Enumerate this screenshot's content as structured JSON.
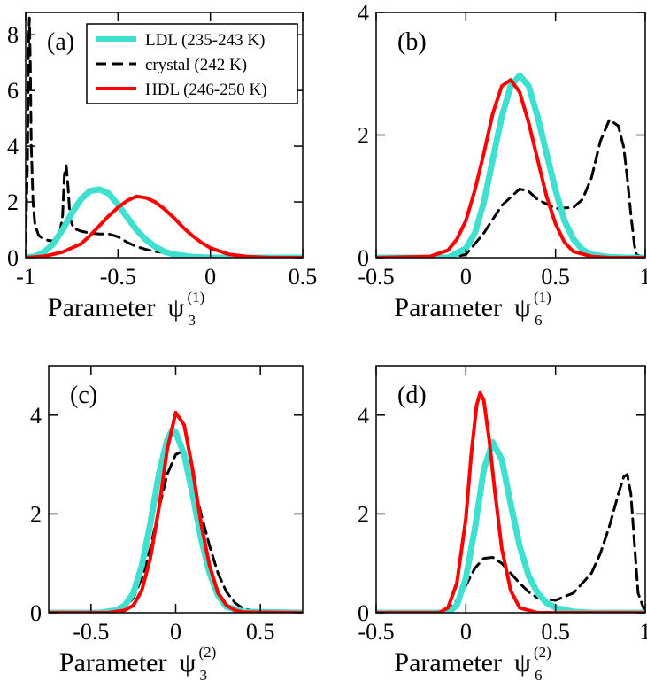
{
  "legend": {
    "items": [
      {
        "label": "LDL (235-243 K)",
        "color": "#40e0d0",
        "style": "solid-thick"
      },
      {
        "label": "crystal (242 K)",
        "color": "#000000",
        "style": "dashed"
      },
      {
        "label": "HDL (246-250 K)",
        "color": "#ff0000",
        "style": "solid"
      }
    ]
  },
  "chart_data": [
    {
      "type": "line",
      "panel_label": "(a)",
      "xlabel": "Parameter",
      "xlabel_symbol": "ψ",
      "xlabel_sub": "3",
      "xlabel_sup": "(1)",
      "xlim": [
        -1,
        0.5
      ],
      "ylim": [
        0,
        8.8
      ],
      "xticks": [
        "-1",
        "-0.5",
        "0",
        "0.5"
      ],
      "xtick_values": [
        -1,
        -0.5,
        0,
        0.5
      ],
      "yticks": [
        "0",
        "2",
        "4",
        "6",
        "8"
      ],
      "ytick_values": [
        0,
        2,
        4,
        6,
        8
      ],
      "series": [
        {
          "name": "crystal (242 K)",
          "x": [
            -1.0,
            -0.99,
            -0.985,
            -0.98,
            -0.975,
            -0.97,
            -0.96,
            -0.95,
            -0.93,
            -0.9,
            -0.86,
            -0.82,
            -0.8,
            -0.79,
            -0.78,
            -0.77,
            -0.76,
            -0.74,
            -0.7,
            -0.65,
            -0.6,
            -0.55,
            -0.5,
            -0.45,
            -0.4,
            -0.35,
            -0.3,
            -0.2,
            -0.1,
            0.0,
            0.1,
            0.3,
            0.5
          ],
          "y": [
            0.5,
            3.5,
            7.5,
            8.6,
            7.0,
            4.0,
            2.0,
            1.2,
            0.8,
            0.65,
            0.6,
            0.7,
            1.5,
            3.0,
            3.3,
            2.5,
            1.4,
            1.05,
            0.95,
            0.88,
            0.85,
            0.85,
            0.75,
            0.55,
            0.4,
            0.3,
            0.22,
            0.15,
            0.08,
            0.04,
            0.02,
            0.0,
            0.0
          ]
        },
        {
          "name": "LDL (235-243 K)",
          "x": [
            -1.0,
            -0.95,
            -0.9,
            -0.85,
            -0.8,
            -0.75,
            -0.7,
            -0.65,
            -0.6,
            -0.55,
            -0.5,
            -0.45,
            -0.4,
            -0.35,
            -0.3,
            -0.25,
            -0.2,
            -0.1,
            0.0,
            0.1,
            0.2,
            0.3,
            0.5
          ],
          "y": [
            0.0,
            0.05,
            0.2,
            0.5,
            1.0,
            1.6,
            2.1,
            2.4,
            2.45,
            2.3,
            1.9,
            1.45,
            1.0,
            0.65,
            0.4,
            0.22,
            0.12,
            0.03,
            0.0,
            0.0,
            0.0,
            0.0,
            0.0
          ]
        },
        {
          "name": "HDL (246-250 K)",
          "x": [
            -1.0,
            -0.9,
            -0.8,
            -0.7,
            -0.65,
            -0.6,
            -0.55,
            -0.5,
            -0.45,
            -0.4,
            -0.35,
            -0.3,
            -0.25,
            -0.2,
            -0.15,
            -0.1,
            -0.05,
            0.0,
            0.1,
            0.2,
            0.3,
            0.4,
            0.5
          ],
          "y": [
            0.0,
            0.05,
            0.2,
            0.5,
            0.8,
            1.15,
            1.5,
            1.8,
            2.05,
            2.2,
            2.15,
            2.0,
            1.75,
            1.45,
            1.1,
            0.8,
            0.55,
            0.35,
            0.12,
            0.04,
            0.01,
            0.0,
            0.0
          ]
        }
      ]
    },
    {
      "type": "line",
      "panel_label": "(b)",
      "xlabel": "Parameter",
      "xlabel_symbol": "ψ",
      "xlabel_sub": "6",
      "xlabel_sup": "(1)",
      "xlim": [
        -0.5,
        1.0
      ],
      "ylim": [
        0,
        4
      ],
      "xticks": [
        "-0.5",
        "0",
        "0.5",
        "1"
      ],
      "xtick_values": [
        -0.5,
        0,
        0.5,
        1
      ],
      "yticks": [
        "0",
        "2",
        "4"
      ],
      "ytick_values": [
        0,
        2,
        4
      ],
      "series": [
        {
          "name": "crystal (242 K)",
          "x": [
            -0.5,
            -0.1,
            0.0,
            0.1,
            0.2,
            0.3,
            0.35,
            0.4,
            0.5,
            0.6,
            0.65,
            0.7,
            0.75,
            0.8,
            0.85,
            0.88,
            0.9,
            0.92,
            0.94,
            0.95,
            1.0
          ],
          "y": [
            0.0,
            0.0,
            0.05,
            0.4,
            0.85,
            1.12,
            1.08,
            0.95,
            0.8,
            0.82,
            0.95,
            1.3,
            1.9,
            2.25,
            2.15,
            1.8,
            1.3,
            0.7,
            0.2,
            0.05,
            0.0
          ]
        },
        {
          "name": "LDL (235-243 K)",
          "x": [
            -0.5,
            -0.1,
            0.0,
            0.05,
            0.1,
            0.15,
            0.2,
            0.25,
            0.3,
            0.35,
            0.4,
            0.45,
            0.5,
            0.55,
            0.6,
            0.65,
            0.7,
            0.8,
            0.9,
            1.0
          ],
          "y": [
            0.0,
            0.0,
            0.15,
            0.4,
            0.9,
            1.6,
            2.3,
            2.8,
            2.97,
            2.8,
            2.3,
            1.7,
            1.1,
            0.6,
            0.3,
            0.13,
            0.05,
            0.01,
            0.0,
            0.0
          ]
        },
        {
          "name": "HDL (246-250 K)",
          "x": [
            -0.5,
            -0.2,
            -0.1,
            -0.05,
            0.0,
            0.05,
            0.1,
            0.15,
            0.2,
            0.25,
            0.3,
            0.35,
            0.4,
            0.45,
            0.5,
            0.55,
            0.6,
            0.7,
            0.8,
            1.0
          ],
          "y": [
            0.0,
            0.02,
            0.12,
            0.3,
            0.6,
            1.1,
            1.7,
            2.35,
            2.8,
            2.9,
            2.7,
            2.2,
            1.6,
            1.0,
            0.55,
            0.25,
            0.1,
            0.02,
            0.0,
            0.0
          ]
        }
      ]
    },
    {
      "type": "line",
      "panel_label": "(c)",
      "xlabel": "Parameter",
      "xlabel_symbol": "ψ",
      "xlabel_sub": "3",
      "xlabel_sup": "(2)",
      "xlim": [
        -0.75,
        0.75
      ],
      "ylim": [
        0,
        5
      ],
      "xticks": [
        "-0.5",
        "0",
        "0.5"
      ],
      "xtick_values": [
        -0.5,
        0,
        0.5
      ],
      "yticks": [
        "0",
        "2",
        "4"
      ],
      "ytick_values": [
        0,
        2,
        4
      ],
      "series": [
        {
          "name": "crystal (242 K)",
          "x": [
            -0.75,
            -0.4,
            -0.3,
            -0.25,
            -0.2,
            -0.15,
            -0.1,
            -0.05,
            0.0,
            0.03,
            0.05,
            0.1,
            0.15,
            0.2,
            0.25,
            0.3,
            0.35,
            0.4,
            0.5,
            0.6,
            0.75
          ],
          "y": [
            0.0,
            0.02,
            0.12,
            0.3,
            0.7,
            1.3,
            2.1,
            2.8,
            3.2,
            3.25,
            3.15,
            2.7,
            2.0,
            1.35,
            0.8,
            0.42,
            0.2,
            0.08,
            0.02,
            0.0,
            0.0
          ]
        },
        {
          "name": "LDL (235-243 K)",
          "x": [
            -0.75,
            -0.45,
            -0.35,
            -0.3,
            -0.25,
            -0.2,
            -0.15,
            -0.1,
            -0.05,
            -0.02,
            0.0,
            0.05,
            0.1,
            0.15,
            0.2,
            0.25,
            0.3,
            0.4,
            0.75
          ],
          "y": [
            0.0,
            0.0,
            0.05,
            0.15,
            0.4,
            0.95,
            1.8,
            2.8,
            3.5,
            3.7,
            3.65,
            3.2,
            2.4,
            1.5,
            0.8,
            0.35,
            0.12,
            0.02,
            0.0
          ]
        },
        {
          "name": "HDL (246-250 K)",
          "x": [
            -0.75,
            -0.4,
            -0.3,
            -0.25,
            -0.2,
            -0.15,
            -0.1,
            -0.05,
            0.0,
            0.05,
            0.1,
            0.15,
            0.2,
            0.25,
            0.3,
            0.35,
            0.4,
            0.75
          ],
          "y": [
            0.0,
            0.0,
            0.05,
            0.15,
            0.45,
            1.1,
            2.1,
            3.3,
            4.05,
            3.8,
            2.9,
            1.8,
            0.95,
            0.4,
            0.15,
            0.05,
            0.01,
            0.0
          ]
        }
      ]
    },
    {
      "type": "line",
      "panel_label": "(d)",
      "xlabel": "Parameter",
      "xlabel_symbol": "ψ",
      "xlabel_sub": "6",
      "xlabel_sup": "(2)",
      "xlim": [
        -0.5,
        1.0
      ],
      "ylim": [
        0,
        5
      ],
      "xticks": [
        "-0.5",
        "0",
        "0.5",
        "1"
      ],
      "xtick_values": [
        -0.5,
        0,
        0.5,
        1
      ],
      "yticks": [
        "0",
        "2",
        "4"
      ],
      "ytick_values": [
        0,
        2,
        4
      ],
      "series": [
        {
          "name": "crystal (242 K)",
          "x": [
            -0.5,
            -0.15,
            -0.1,
            -0.05,
            0.0,
            0.05,
            0.1,
            0.15,
            0.2,
            0.25,
            0.3,
            0.35,
            0.4,
            0.5,
            0.6,
            0.7,
            0.75,
            0.8,
            0.85,
            0.88,
            0.9,
            0.92,
            0.94,
            0.96,
            1.0
          ],
          "y": [
            0.0,
            0.0,
            0.05,
            0.25,
            0.55,
            0.9,
            1.1,
            1.12,
            1.0,
            0.8,
            0.6,
            0.42,
            0.3,
            0.25,
            0.4,
            0.8,
            1.2,
            1.75,
            2.4,
            2.75,
            2.8,
            2.4,
            1.4,
            0.4,
            0.0
          ]
        },
        {
          "name": "LDL (235-243 K)",
          "x": [
            -0.5,
            -0.1,
            -0.05,
            0.0,
            0.05,
            0.1,
            0.15,
            0.2,
            0.25,
            0.3,
            0.35,
            0.4,
            0.45,
            0.5,
            0.6,
            0.7,
            0.8,
            1.0
          ],
          "y": [
            0.0,
            0.0,
            0.15,
            0.7,
            1.7,
            2.9,
            3.45,
            3.1,
            2.2,
            1.35,
            0.75,
            0.4,
            0.2,
            0.1,
            0.02,
            0.0,
            0.0,
            0.0
          ]
        },
        {
          "name": "HDL (246-250 K)",
          "x": [
            -0.5,
            -0.15,
            -0.1,
            -0.05,
            0.0,
            0.03,
            0.06,
            0.08,
            0.1,
            0.13,
            0.16,
            0.2,
            0.25,
            0.3,
            0.4,
            1.0
          ],
          "y": [
            0.0,
            0.0,
            0.1,
            0.6,
            1.9,
            3.2,
            4.2,
            4.45,
            4.3,
            3.5,
            2.5,
            1.3,
            0.45,
            0.1,
            0.0,
            0.0
          ]
        }
      ]
    }
  ]
}
